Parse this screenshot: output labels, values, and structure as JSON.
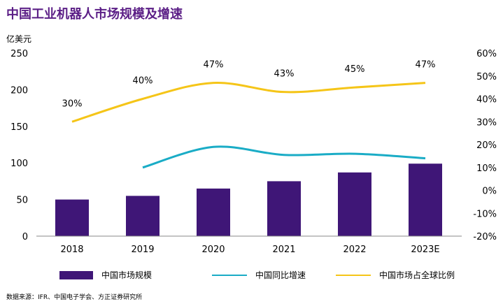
{
  "title": "中国工业机器人市场规模及增速",
  "unit_label": "亿美元",
  "source": "数据来源：IFR、中国电子学会、方正证券研究所",
  "legend": {
    "bar": "中国市场规模",
    "line1": "中国同比增速",
    "line2": "中国市场占全球比例"
  },
  "colors": {
    "bar": "#3F1677",
    "growth": "#1AACC6",
    "share": "#F5C518",
    "title": "#5B1E86"
  },
  "chart_data": {
    "type": "bar",
    "categories": [
      "2018",
      "2019",
      "2020",
      "2021",
      "2022",
      "2023E"
    ],
    "series": [
      {
        "name": "中国市场规模",
        "type": "bar",
        "axis": "left",
        "values": [
          50,
          55,
          65,
          75,
          87,
          99
        ]
      },
      {
        "name": "中国同比增速",
        "type": "line",
        "axis": "right",
        "values": [
          null,
          10,
          19,
          15.5,
          16,
          14
        ]
      },
      {
        "name": "中国市场占全球比例",
        "type": "line",
        "axis": "right",
        "values": [
          30,
          40,
          47,
          43,
          45,
          47
        ],
        "labels": [
          "30%",
          "40%",
          "47%",
          "43%",
          "45%",
          "47%"
        ]
      }
    ],
    "y_left": {
      "min": 0,
      "max": 250,
      "ticks": [
        "0",
        "50",
        "100",
        "150",
        "200",
        "250"
      ]
    },
    "y_right": {
      "min": -20,
      "max": 60,
      "ticks": [
        "-20%",
        "-10%",
        "0%",
        "10%",
        "20%",
        "30%",
        "40%",
        "50%",
        "60%"
      ]
    },
    "grid": false
  }
}
